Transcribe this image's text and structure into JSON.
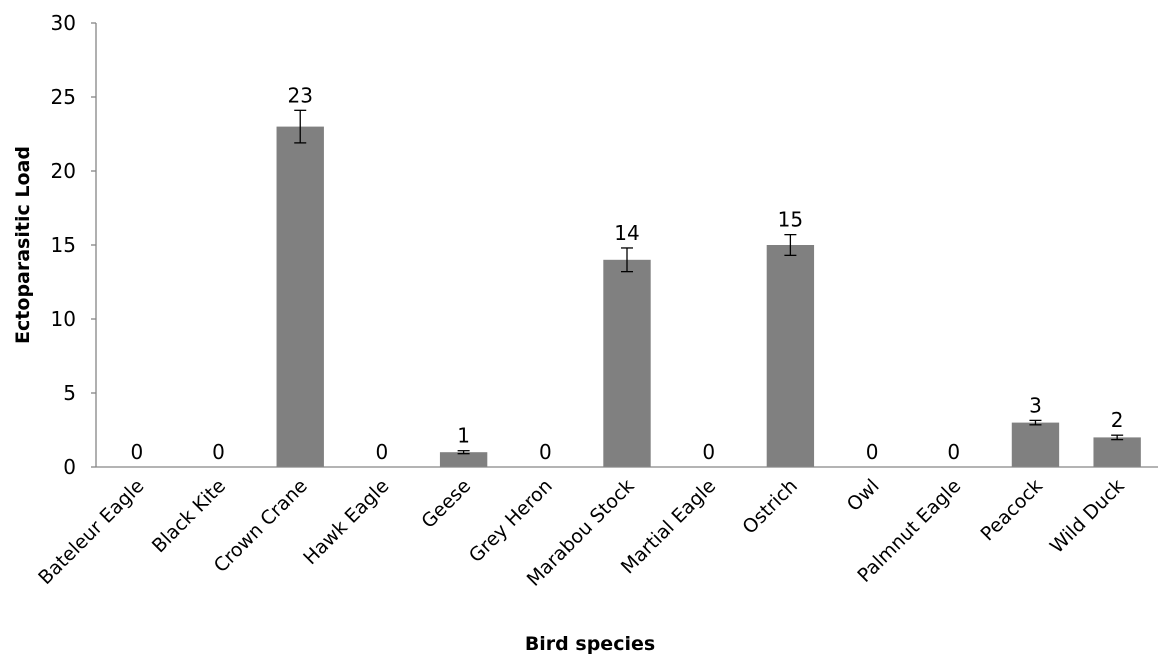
{
  "chart_data": {
    "type": "bar",
    "title": "",
    "xlabel": "Bird species",
    "ylabel": "Ectoparasitic Load",
    "ylim": [
      0,
      30
    ],
    "yticks": [
      0,
      5,
      10,
      15,
      20,
      25,
      30
    ],
    "grid": false,
    "legend": "none",
    "bar_color": "#808080",
    "categories": [
      "Bateleur Eagle",
      "Black Kite",
      "Crown Crane",
      "Hawk Eagle",
      "Geese",
      "Grey Heron",
      "Marabou Stock",
      "Martial Eagle",
      "Ostrich",
      "Owl",
      "Palmnut Eagle",
      "Peacock",
      "Wild Duck"
    ],
    "values": [
      0,
      0,
      23,
      0,
      1,
      0,
      14,
      0,
      15,
      0,
      0,
      3,
      2
    ],
    "data_labels": [
      "0",
      "0",
      "23",
      "0",
      "1",
      "0",
      "14",
      "0",
      "15",
      "0",
      "0",
      "3",
      "2"
    ],
    "error": [
      0,
      0,
      1.1,
      0,
      0.1,
      0,
      0.8,
      0,
      0.7,
      0,
      0,
      0.15,
      0.15
    ]
  }
}
